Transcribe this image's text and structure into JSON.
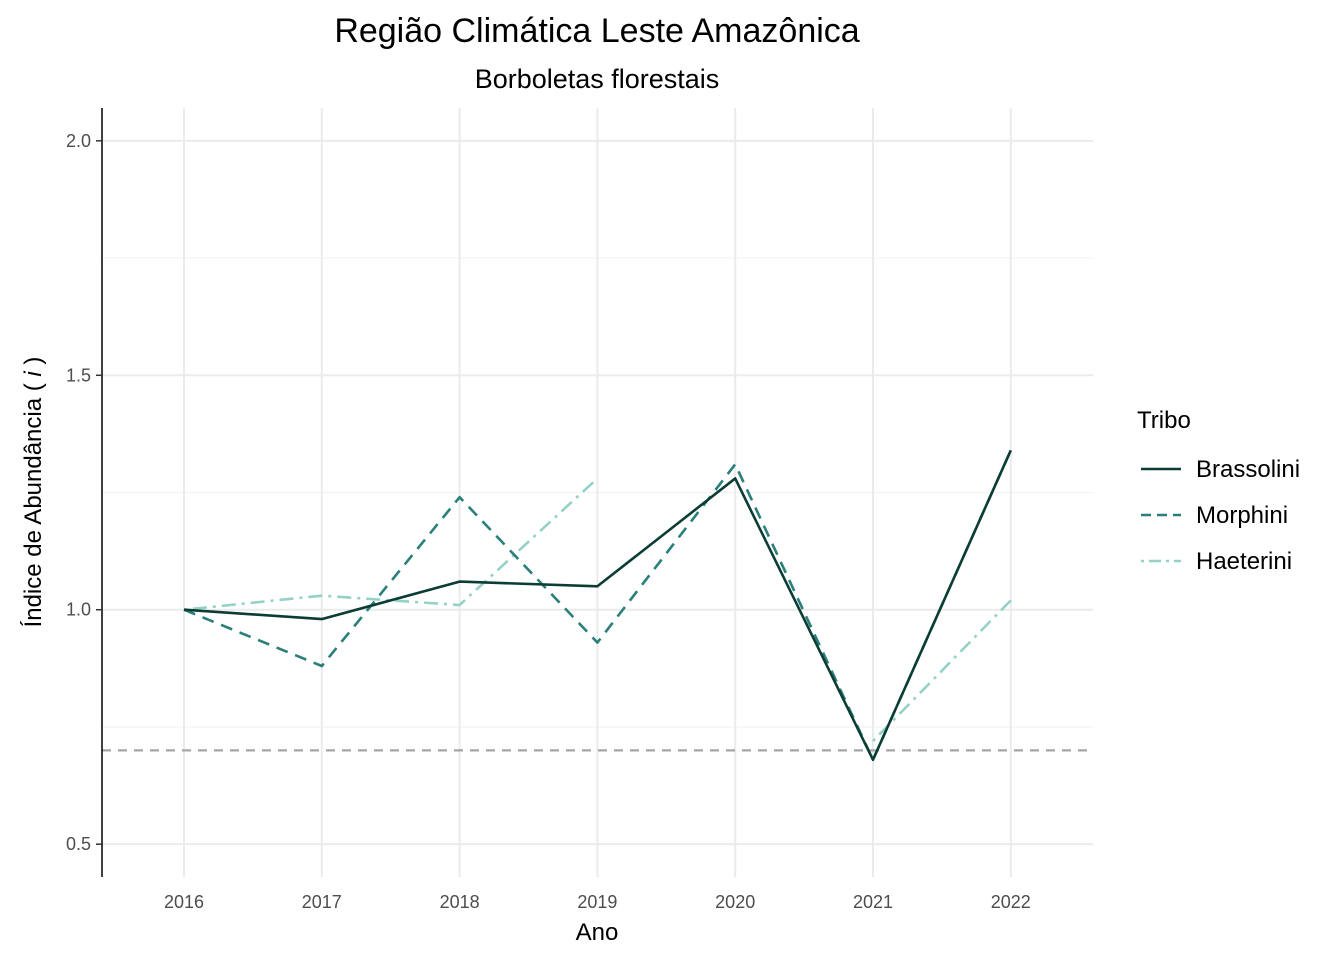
{
  "chart_data": {
    "type": "line",
    "title": "Região Climática Leste Amazônica",
    "subtitle": "Borboletas florestais",
    "xlabel": "Ano",
    "ylabel_main": "Índice de Abundância ( ",
    "ylabel_italic": "i",
    "ylabel_end": " )",
    "x": [
      "2016",
      "2017",
      "2018",
      "2019",
      "2020",
      "2021",
      "2022"
    ],
    "ylim": [
      0.43,
      2.07
    ],
    "y_ticks": [
      0.5,
      1.0,
      1.5,
      2.0
    ],
    "y_tick_labels": [
      "0.5",
      "1.0",
      "1.5",
      "2.0"
    ],
    "y_minor_ticks": [
      0.75,
      1.25,
      1.75
    ],
    "reference_line": {
      "y": 0.7,
      "color": "#a6a6a6",
      "style": "dashed"
    },
    "grid": true,
    "legend_title": "Tribo",
    "legend_position": "right",
    "series": [
      {
        "name": "Brassolini",
        "color": "#0b3d35",
        "dash": "solid",
        "values": [
          1.0,
          0.98,
          1.06,
          1.05,
          1.28,
          0.68,
          1.34
        ]
      },
      {
        "name": "Morphini",
        "color": "#2b7f7a",
        "dash": "dashed",
        "values": [
          1.0,
          0.88,
          1.24,
          0.93,
          1.31,
          0.68,
          1.34
        ]
      },
      {
        "name": "Haeterini",
        "color": "#94d2c6",
        "dash": "dashdot",
        "values": [
          1.0,
          1.03,
          1.01,
          1.28,
          null,
          0.72,
          1.02
        ]
      }
    ]
  }
}
